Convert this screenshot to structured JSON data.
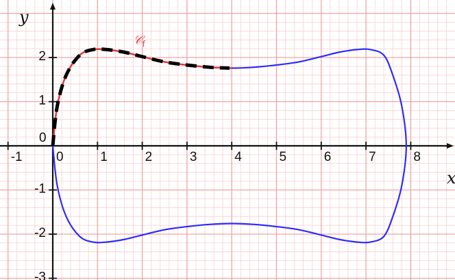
{
  "chart_data": {
    "type": "line",
    "xlabel": "x",
    "ylabel": "y",
    "xlim": [
      -1.2,
      8.9
    ],
    "ylim": [
      -3.0,
      3.0
    ],
    "x_ticks": [
      -1,
      0,
      1,
      2,
      3,
      4,
      5,
      6,
      7,
      8
    ],
    "y_ticks": [
      -3,
      -2,
      -1,
      0,
      1,
      2
    ],
    "grid": true,
    "grid_minor_step": 0.2,
    "curve_label": {
      "main": "𝒞",
      "sub": "f",
      "x": 1.8,
      "y": 2.3
    },
    "series": [
      {
        "style": "blue-outline",
        "color": "#2b2bff",
        "x": [
          0,
          0.1,
          0.3,
          0.6,
          0.9,
          1.2,
          1.6,
          2.0,
          2.5,
          3.0,
          3.5,
          4.0,
          4.5,
          5.0,
          5.5,
          6.0,
          6.4,
          6.8,
          7.1,
          7.4,
          7.6,
          7.8,
          7.9,
          7.8,
          7.6,
          7.4,
          7.1,
          6.8,
          6.4,
          6.0,
          5.5,
          5.0,
          4.5,
          4.0,
          3.5,
          3.0,
          2.5,
          2.0,
          1.6,
          1.2,
          0.9,
          0.6,
          0.3,
          0.1,
          0
        ],
        "y": [
          0,
          0.9,
          1.6,
          2.05,
          2.18,
          2.18,
          2.12,
          2.02,
          1.9,
          1.83,
          1.78,
          1.76,
          1.78,
          1.83,
          1.9,
          2.02,
          2.12,
          2.18,
          2.18,
          2.05,
          1.6,
          0.9,
          0,
          -0.9,
          -1.6,
          -2.05,
          -2.18,
          -2.18,
          -2.12,
          -2.02,
          -1.9,
          -1.83,
          -1.78,
          -1.76,
          -1.78,
          -1.83,
          -1.9,
          -2.02,
          -2.12,
          -2.18,
          -2.18,
          -2.05,
          -1.6,
          -0.9,
          0
        ]
      },
      {
        "style": "red-upper",
        "color": "#ee3333",
        "x": [
          0,
          0.1,
          0.3,
          0.6,
          0.9,
          1.2,
          1.6,
          2.0,
          2.5,
          3.0,
          3.5,
          4.0
        ],
        "y": [
          0,
          0.9,
          1.6,
          2.05,
          2.18,
          2.18,
          2.12,
          2.02,
          1.9,
          1.83,
          1.78,
          1.76
        ]
      },
      {
        "style": "black-dashed",
        "color": "#000000",
        "x": [
          0,
          0.1,
          0.3,
          0.6,
          0.9,
          1.2,
          1.6,
          2.0,
          2.5,
          3.0,
          3.5,
          3.95
        ],
        "y": [
          0,
          0.9,
          1.6,
          2.05,
          2.18,
          2.18,
          2.12,
          2.02,
          1.9,
          1.83,
          1.78,
          1.76
        ]
      }
    ]
  }
}
